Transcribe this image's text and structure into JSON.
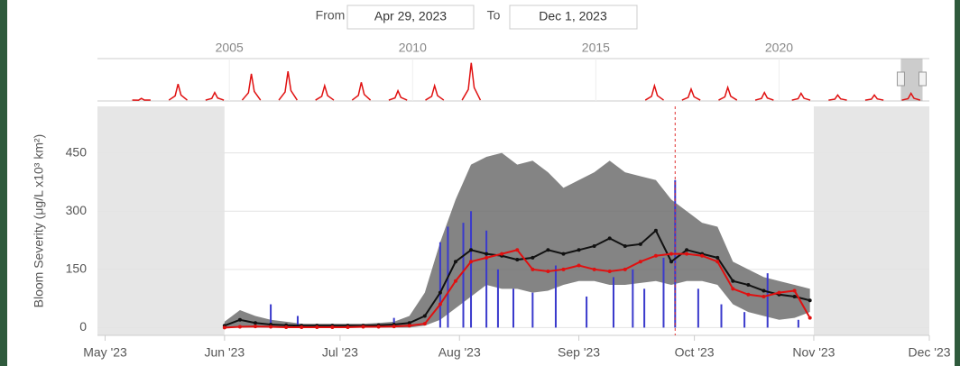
{
  "chart_data": {
    "type": "line",
    "range_selector": {
      "from_label": "From",
      "to_label": "To"
    },
    "xlim": [
      "Apr 29, 2023",
      "Dec 1, 2023"
    ],
    "xticks": [
      {
        "value": "2023-05-01",
        "label": "May '23"
      },
      {
        "value": "2023-06-01",
        "label": "Jun '23"
      },
      {
        "value": "2023-07-01",
        "label": "Jul '23"
      },
      {
        "value": "2023-08-01",
        "label": "Aug '23"
      },
      {
        "value": "2023-09-01",
        "label": "Sep '23"
      },
      {
        "value": "2023-10-01",
        "label": "Oct '23"
      },
      {
        "value": "2023-11-01",
        "label": "Nov '23"
      },
      {
        "value": "2023-12-01",
        "label": "Dec '23"
      }
    ],
    "ylabel": "Bloom Severity (μg/L x10³ km²)",
    "ylim": [
      -20,
      570
    ],
    "yticks": [
      0,
      150,
      300,
      450
    ],
    "grid": true,
    "plot_bands": [
      [
        "Apr 29, 2023",
        "2023-06-01"
      ],
      [
        "2023-11-01",
        "Dec 1, 2023"
      ]
    ],
    "plot_band_color": "#e6e6e6",
    "vline": {
      "x": "2023-09-26",
      "color": "#e03030"
    },
    "x": [
      "2023-06-01",
      "2023-06-05",
      "2023-06-09",
      "2023-06-13",
      "2023-06-17",
      "2023-06-21",
      "2023-06-25",
      "2023-06-29",
      "2023-07-03",
      "2023-07-07",
      "2023-07-11",
      "2023-07-15",
      "2023-07-19",
      "2023-07-23",
      "2023-07-27",
      "2023-07-31",
      "2023-08-04",
      "2023-08-08",
      "2023-08-12",
      "2023-08-16",
      "2023-08-20",
      "2023-08-24",
      "2023-08-28",
      "2023-09-01",
      "2023-09-05",
      "2023-09-09",
      "2023-09-13",
      "2023-09-17",
      "2023-09-21",
      "2023-09-25",
      "2023-09-29",
      "2023-10-03",
      "2023-10-07",
      "2023-10-11",
      "2023-10-15",
      "2023-10-19",
      "2023-10-23",
      "2023-10-27",
      "2023-10-31"
    ],
    "range": {
      "color": "#6e6e6e",
      "low": [
        0,
        0,
        0,
        0,
        0,
        0,
        0,
        0,
        0,
        0,
        0,
        0,
        0,
        5,
        20,
        50,
        80,
        110,
        100,
        100,
        90,
        95,
        110,
        120,
        120,
        110,
        110,
        115,
        120,
        110,
        120,
        120,
        110,
        60,
        40,
        30,
        20,
        25,
        40
      ],
      "high": [
        15,
        45,
        30,
        20,
        15,
        10,
        10,
        10,
        10,
        10,
        12,
        15,
        30,
        90,
        220,
        330,
        420,
        440,
        450,
        420,
        430,
        400,
        360,
        380,
        400,
        430,
        400,
        390,
        380,
        330,
        300,
        270,
        260,
        170,
        150,
        130,
        120,
        110,
        100
      ]
    },
    "bars": {
      "color": "#3a3acc",
      "x": [
        "2023-06-13",
        "2023-06-20",
        "2023-07-15",
        "2023-07-27",
        "2023-07-29",
        "2023-08-02",
        "2023-08-04",
        "2023-08-08",
        "2023-08-11",
        "2023-08-15",
        "2023-08-20",
        "2023-08-26",
        "2023-09-03",
        "2023-09-10",
        "2023-09-15",
        "2023-09-18",
        "2023-09-23",
        "2023-09-26",
        "2023-10-02",
        "2023-10-08",
        "2023-10-14",
        "2023-10-20",
        "2023-10-28"
      ],
      "values": [
        60,
        30,
        25,
        220,
        260,
        270,
        300,
        250,
        150,
        100,
        90,
        160,
        80,
        130,
        150,
        100,
        180,
        380,
        100,
        60,
        40,
        140,
        20
      ]
    },
    "series": [
      {
        "color": "#111111",
        "values": [
          5,
          20,
          12,
          8,
          6,
          5,
          5,
          5,
          5,
          5,
          6,
          8,
          12,
          30,
          90,
          170,
          200,
          190,
          185,
          175,
          180,
          200,
          190,
          200,
          210,
          230,
          210,
          215,
          250,
          170,
          200,
          190,
          180,
          120,
          110,
          95,
          85,
          80,
          70
        ]
      },
      {
        "color": "#e01010",
        "values": [
          0,
          2,
          3,
          2,
          1,
          1,
          1,
          1,
          1,
          2,
          2,
          3,
          5,
          10,
          60,
          120,
          170,
          180,
          190,
          200,
          150,
          145,
          150,
          160,
          150,
          145,
          150,
          170,
          185,
          190,
          190,
          185,
          170,
          100,
          85,
          80,
          90,
          95,
          25
        ]
      }
    ],
    "navigator": {
      "xlim": [
        2001.4,
        2024.1
      ],
      "xticks": [
        2005,
        2010,
        2015,
        2020
      ],
      "ylim": [
        0,
        50
      ],
      "color": "#e01010",
      "x": [
        2002.6,
        2003.6,
        2004.6,
        2005.6,
        2006.6,
        2007.6,
        2008.6,
        2009.6,
        2010.6,
        2011.6,
        2016.6,
        2017.6,
        2018.6,
        2019.6,
        2020.6,
        2021.6,
        2022.6,
        2023.6
      ],
      "values": [
        3,
        20,
        10,
        32,
        35,
        18,
        22,
        12,
        18,
        45,
        18,
        14,
        16,
        10,
        9,
        7,
        7,
        9
      ]
    }
  }
}
